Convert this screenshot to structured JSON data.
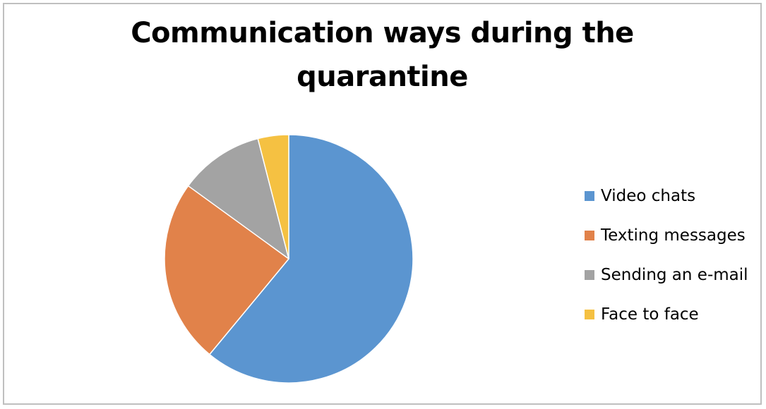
{
  "chart_data": {
    "type": "pie",
    "title": "Communication ways during the quarantine",
    "title_lines": [
      "Communication ways during the",
      "quarantine"
    ],
    "categories": [
      "Video chats",
      "Texting messages",
      "Sending an e-mail",
      "Face to face"
    ],
    "values": [
      61,
      24,
      11,
      4
    ],
    "colors": [
      "#5b95d0",
      "#e1824a",
      "#a3a3a3",
      "#f5c142"
    ],
    "start_angle_deg": 0,
    "direction": "clockwise",
    "legend_position": "right"
  }
}
